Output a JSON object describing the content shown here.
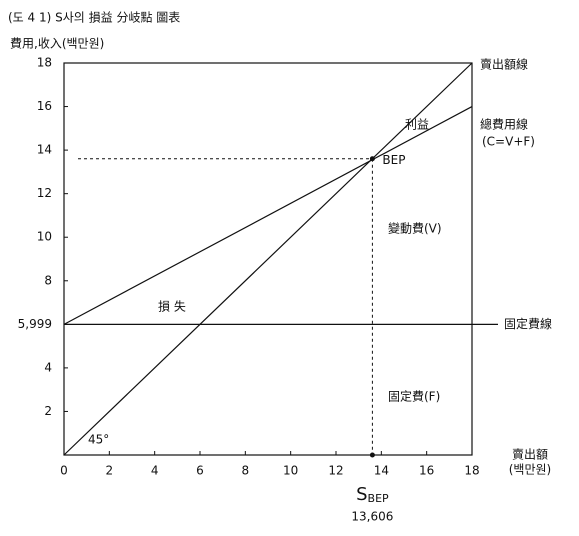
{
  "chart_data": {
    "type": "line",
    "title": "(도 4 1)  S사의  損益  分岐點  圖表",
    "y_label": "費用,收入(백만원)",
    "x_label": "賣出額",
    "x_unit": "(백만원)",
    "xlim": [
      0,
      18
    ],
    "ylim": [
      0,
      18
    ],
    "xticks": [
      0,
      2,
      4,
      6,
      8,
      10,
      12,
      14,
      16,
      18
    ],
    "yticks": [
      2,
      4,
      {
        "value": 5.999,
        "label": "5,999"
      },
      8,
      10,
      12,
      14,
      16,
      18
    ],
    "x": [
      0,
      18
    ],
    "series": [
      {
        "name": "賣出額線",
        "values": [
          0,
          18
        ]
      },
      {
        "name": "總費用線",
        "sublabel": "(C=V+F)",
        "values": [
          5.999,
          16
        ]
      },
      {
        "name": "固定費線",
        "values": [
          5.999,
          5.999
        ]
      }
    ],
    "bep": {
      "label": "BEP",
      "x": 13.606,
      "y": 13.606,
      "x_label": "S",
      "x_label_sub": "BEP",
      "value_label": "13,606"
    },
    "annotations": {
      "profit": "利益",
      "loss": "損   失",
      "variable": "變動費(V)",
      "fixed": "固定費(F)",
      "angle": "45°"
    }
  }
}
